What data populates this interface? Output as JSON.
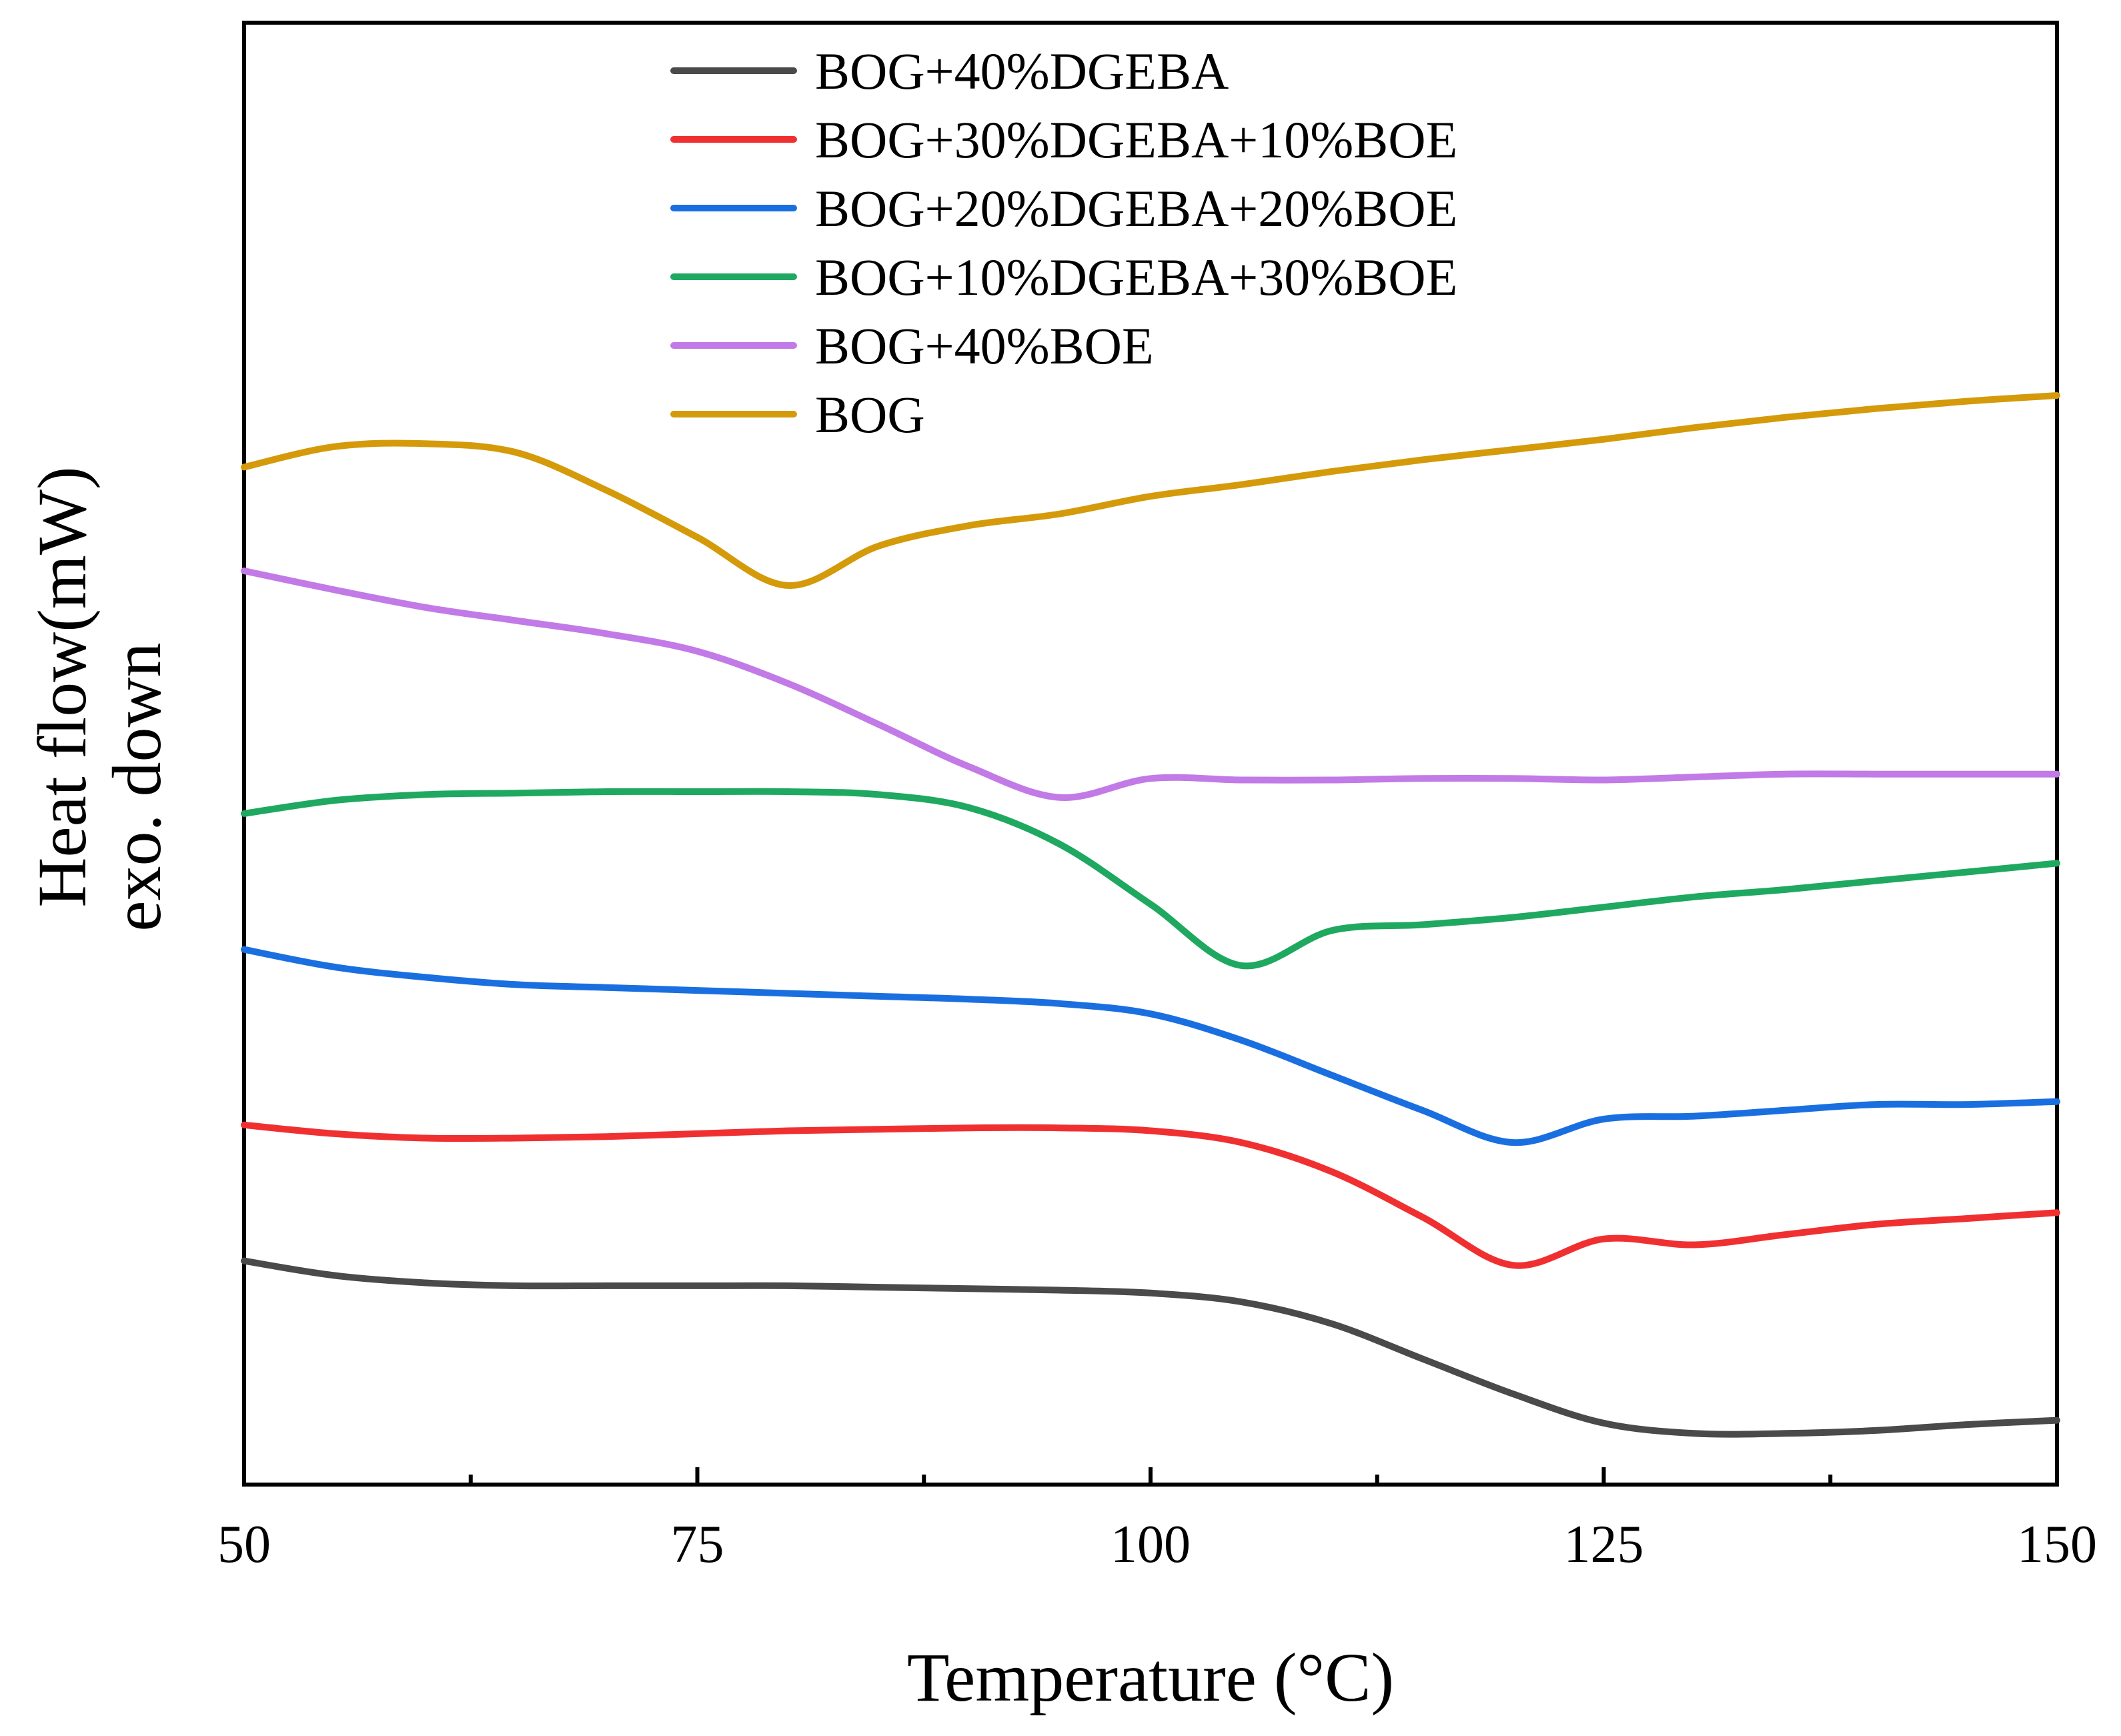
{
  "chart_data": {
    "type": "line",
    "title": "",
    "xlabel": "Temperature (°C)",
    "ylabel": "Heat flow(mW)",
    "ylabel2": "exo. down",
    "xlim": [
      50,
      150
    ],
    "ylim": [
      0,
      100
    ],
    "xticks": [
      50,
      75,
      100,
      125,
      150
    ],
    "xtick_labels": [
      "50",
      "75",
      "100",
      "125",
      "150"
    ],
    "y_tick_labels_shown": false,
    "legend_position": "top-center",
    "series": [
      {
        "name": "BOG+40%DGEBA",
        "color": "#4a4a4a",
        "x": [
          50,
          55,
          60,
          65,
          70,
          75,
          80,
          85,
          90,
          95,
          100,
          105,
          110,
          115,
          120,
          125,
          130,
          135,
          140,
          145,
          150
        ],
        "y": [
          15.3,
          14.3,
          13.8,
          13.6,
          13.6,
          13.6,
          13.6,
          13.5,
          13.4,
          13.3,
          13.1,
          12.5,
          11.0,
          8.6,
          6.2,
          4.2,
          3.5,
          3.5,
          3.7,
          4.1,
          4.4
        ]
      },
      {
        "name": "BOG+30%DGEBA+10%BOE",
        "color": "#f03030",
        "x": [
          50,
          55,
          60,
          65,
          70,
          75,
          80,
          85,
          90,
          95,
          100,
          105,
          110,
          115,
          120,
          125,
          130,
          135,
          140,
          145,
          150
        ],
        "y": [
          24.6,
          24.0,
          23.7,
          23.7,
          23.8,
          24.0,
          24.2,
          24.3,
          24.4,
          24.4,
          24.2,
          23.4,
          21.4,
          18.3,
          15.0,
          16.8,
          16.4,
          17.1,
          17.8,
          18.2,
          18.6
        ]
      },
      {
        "name": "BOG+20%DGEBA+20%BOE",
        "color": "#1a6fe0",
        "x": [
          50,
          55,
          60,
          65,
          70,
          75,
          80,
          85,
          90,
          95,
          100,
          105,
          110,
          115,
          120,
          125,
          130,
          135,
          140,
          145,
          150
        ],
        "y": [
          36.6,
          35.4,
          34.7,
          34.2,
          34.0,
          33.8,
          33.6,
          33.4,
          33.2,
          32.9,
          32.2,
          30.4,
          28.0,
          25.6,
          23.4,
          25.0,
          25.2,
          25.6,
          26.0,
          26.0,
          26.2
        ]
      },
      {
        "name": "BOG+10%DGEBA+30%BOE",
        "color": "#1fa860",
        "x": [
          50,
          55,
          60,
          65,
          70,
          75,
          80,
          85,
          90,
          95,
          100,
          105,
          110,
          115,
          120,
          125,
          130,
          135,
          140,
          145,
          150
        ],
        "y": [
          45.9,
          46.8,
          47.2,
          47.3,
          47.4,
          47.4,
          47.4,
          47.2,
          46.3,
          43.8,
          39.7,
          35.5,
          37.9,
          38.3,
          38.8,
          39.5,
          40.2,
          40.7,
          41.3,
          41.9,
          42.5
        ]
      },
      {
        "name": "BOG+40%BOE",
        "color": "#c27ae6",
        "x": [
          50,
          55,
          60,
          65,
          70,
          75,
          80,
          85,
          90,
          95,
          100,
          105,
          110,
          115,
          120,
          125,
          130,
          135,
          140,
          145,
          150
        ],
        "y": [
          62.5,
          61.2,
          60.0,
          59.1,
          58.2,
          57.0,
          54.8,
          52.0,
          49.1,
          47.0,
          48.3,
          48.2,
          48.2,
          48.3,
          48.3,
          48.2,
          48.4,
          48.6,
          48.6,
          48.6,
          48.6
        ]
      },
      {
        "name": "BOG",
        "color": "#d49a0a",
        "x": [
          50,
          55,
          60,
          65,
          70,
          75,
          80,
          85,
          90,
          95,
          100,
          105,
          110,
          115,
          120,
          125,
          130,
          135,
          140,
          145,
          150
        ],
        "y": [
          69.6,
          71.0,
          71.2,
          70.6,
          68.0,
          64.8,
          61.5,
          64.2,
          65.6,
          66.4,
          67.6,
          68.4,
          69.3,
          70.1,
          70.8,
          71.5,
          72.3,
          73.0,
          73.6,
          74.1,
          74.5
        ]
      }
    ]
  }
}
